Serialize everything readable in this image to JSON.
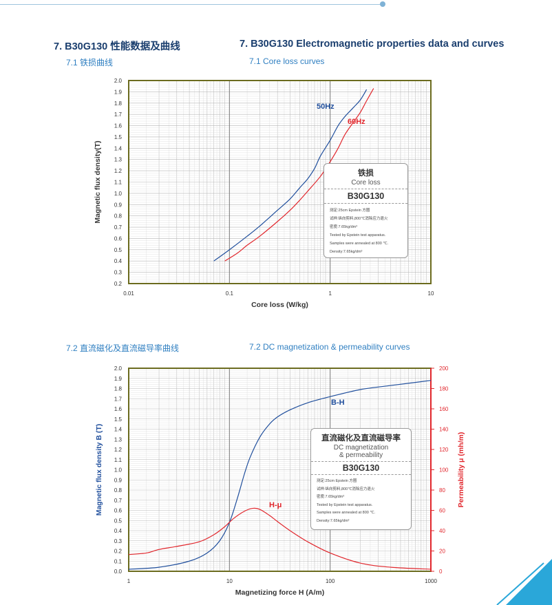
{
  "header": {
    "title_cn": "7. B30G130 性能数据及曲线",
    "title_en": "7. B30G130 Electromagnetic properties data and curves"
  },
  "section1": {
    "title_cn": "7.1 铁损曲线",
    "title_en": "7.1 Core loss curves",
    "box": {
      "title_cn": "铁损",
      "title_en": "Core loss",
      "grade": "B30G130",
      "notes": [
        "测定:25cm Epstein 方圈",
        "试样:纵向剪料,800℃消除应力退火",
        "密度:7.65kg/dm³",
        "Tested by Epstein test apparatus.",
        "Samples were annealed at 800 ℃.",
        "Density:7.65kg/dm³"
      ]
    }
  },
  "section2": {
    "title_cn": "7.2 直流磁化及直流磁导率曲线",
    "title_en": "7.2 DC magnetization & permeability curves",
    "box": {
      "title_cn": "直流磁化及直流磁导率",
      "title_en_1": "DC magnetization",
      "title_en_2": "& permeability",
      "grade": "B30G130",
      "notes": [
        "测定:25cm Epstein 方圈",
        "试样:纵向剪料,800℃消除应力退火",
        "密度:7.65kg/dm³",
        "Tested by Epstein test apparatus.",
        "Samples were annealed at 800 ℃.",
        "Density:7.65kg/dm³"
      ]
    }
  },
  "colors": {
    "blue": "#1f4e9c",
    "red": "#e1262c",
    "frame": "#6b6b1e",
    "grid": "#b5b5b5"
  },
  "chart_data": [
    {
      "type": "line",
      "xlabel": "Core loss (W/kg)",
      "ylabel": "Magnetic flux density(T)",
      "xscale": "log",
      "xlim": [
        0.01,
        10
      ],
      "ylim": [
        0.2,
        2.0
      ],
      "x_ticks": [
        "0.01",
        "0.1",
        "1",
        "10"
      ],
      "y_ticks": [
        "0.2",
        "0.3",
        "0.4",
        "0.5",
        "0.6",
        "0.7",
        "0.8",
        "0.9",
        "1.0",
        "1.1",
        "1.2",
        "1.3",
        "1.4",
        "1.5",
        "1.6",
        "1.7",
        "1.8",
        "1.9",
        "2.0"
      ],
      "series": [
        {
          "name": "50Hz",
          "color": "#1f4e9c",
          "points": [
            [
              0.07,
              0.4
            ],
            [
              0.1,
              0.5
            ],
            [
              0.15,
              0.62
            ],
            [
              0.2,
              0.71
            ],
            [
              0.3,
              0.85
            ],
            [
              0.4,
              0.95
            ],
            [
              0.5,
              1.05
            ],
            [
              0.6,
              1.13
            ],
            [
              0.7,
              1.22
            ],
            [
              0.8,
              1.33
            ],
            [
              1.0,
              1.47
            ],
            [
              1.2,
              1.6
            ],
            [
              1.4,
              1.68
            ],
            [
              1.7,
              1.76
            ],
            [
              2.0,
              1.83
            ],
            [
              2.3,
              1.92
            ]
          ]
        },
        {
          "name": "60Hz",
          "color": "#e1262c",
          "points": [
            [
              0.09,
              0.4
            ],
            [
              0.12,
              0.47
            ],
            [
              0.15,
              0.54
            ],
            [
              0.2,
              0.62
            ],
            [
              0.3,
              0.75
            ],
            [
              0.4,
              0.85
            ],
            [
              0.5,
              0.94
            ],
            [
              0.6,
              1.02
            ],
            [
              0.8,
              1.15
            ],
            [
              1.0,
              1.28
            ],
            [
              1.2,
              1.4
            ],
            [
              1.4,
              1.52
            ],
            [
              1.7,
              1.63
            ],
            [
              2.0,
              1.72
            ],
            [
              2.3,
              1.82
            ],
            [
              2.7,
              1.93
            ]
          ]
        }
      ]
    },
    {
      "type": "line",
      "xlabel": "Magnetizing force H (A/m)",
      "ylabel": "Magnetic flux density B (T)",
      "ylabel_right": "Permeability μ (mh/m)",
      "xscale": "log",
      "xlim": [
        1,
        1000
      ],
      "ylim": [
        0.0,
        2.0
      ],
      "ylim_right": [
        0,
        200
      ],
      "x_ticks": [
        "1",
        "10",
        "100",
        "1000"
      ],
      "y_ticks": [
        "0.0",
        "0.1",
        "0.2",
        "0.3",
        "0.4",
        "0.5",
        "0.6",
        "0.7",
        "0.8",
        "0.9",
        "1.0",
        "1.1",
        "1.2",
        "1.3",
        "1.4",
        "1.5",
        "1.6",
        "1.7",
        "1.8",
        "1.9",
        "2.0"
      ],
      "y_ticks_right": [
        "0",
        "20",
        "40",
        "60",
        "80",
        "100",
        "120",
        "140",
        "160",
        "180",
        "200"
      ],
      "series": [
        {
          "name": "B-H",
          "axis": "left",
          "color": "#1f4e9c",
          "points": [
            [
              1,
              0.02
            ],
            [
              2,
              0.04
            ],
            [
              4,
              0.1
            ],
            [
              6,
              0.18
            ],
            [
              8,
              0.3
            ],
            [
              10,
              0.48
            ],
            [
              12,
              0.72
            ],
            [
              14,
              0.95
            ],
            [
              16,
              1.12
            ],
            [
              20,
              1.32
            ],
            [
              25,
              1.45
            ],
            [
              30,
              1.52
            ],
            [
              40,
              1.59
            ],
            [
              60,
              1.66
            ],
            [
              100,
              1.72
            ],
            [
              200,
              1.79
            ],
            [
              400,
              1.83
            ],
            [
              700,
              1.86
            ],
            [
              1000,
              1.88
            ]
          ]
        },
        {
          "name": "H-μ",
          "axis": "right",
          "color": "#e1262c",
          "points": [
            [
              1,
              16.5
            ],
            [
              1.5,
              18
            ],
            [
              2,
              21.5
            ],
            [
              3,
              24.5
            ],
            [
              5,
              29
            ],
            [
              7,
              36
            ],
            [
              9,
              44
            ],
            [
              11,
              52
            ],
            [
              14,
              59
            ],
            [
              17,
              62
            ],
            [
              20,
              61
            ],
            [
              25,
              55
            ],
            [
              30,
              49
            ],
            [
              40,
              40
            ],
            [
              60,
              29
            ],
            [
              100,
              18
            ],
            [
              200,
              8
            ],
            [
              400,
              4
            ],
            [
              1000,
              2
            ]
          ]
        }
      ]
    }
  ]
}
